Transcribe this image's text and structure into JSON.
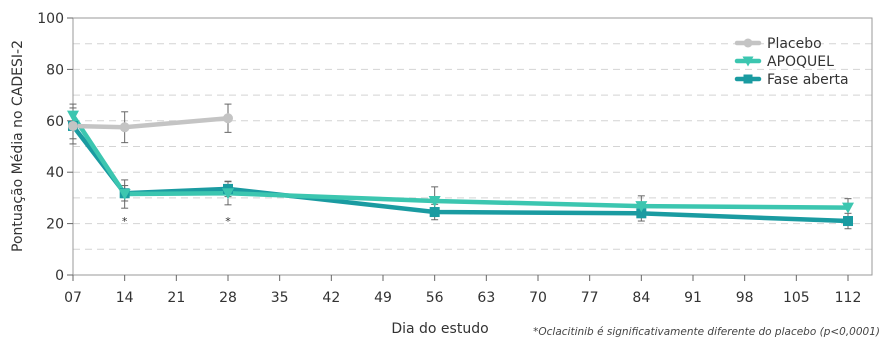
{
  "chart_data": {
    "type": "line",
    "xlabel": "Dia do estudo",
    "ylabel": "Pontuação Média no CADESI-2",
    "x_ticks": [
      "07",
      "14",
      "21",
      "28",
      "35",
      "42",
      "49",
      "56",
      "63",
      "70",
      "77",
      "84",
      "91",
      "98",
      "105",
      "112"
    ],
    "y_ticks": [
      "0",
      "20",
      "40",
      "60",
      "80",
      "100"
    ],
    "ylim": [
      0,
      100
    ],
    "xlim": [
      7,
      112
    ],
    "grid": "horizontal dashed",
    "legend_position": "top-right",
    "footnote": "*Oclacitinib é significativamente diferente do placebo (p<0,0001)",
    "significance_marker": "*",
    "significance_days": [
      14,
      28
    ],
    "series": [
      {
        "name": "Placebo",
        "color": "#c4c4c4",
        "marker": "circle",
        "x": [
          7,
          14,
          28
        ],
        "y": [
          58,
          57.5,
          61
        ],
        "err": [
          7,
          6,
          5.5
        ]
      },
      {
        "name": "APOQUEL",
        "color": "#3cc6b0",
        "marker": "triangle-down",
        "x": [
          7,
          14,
          28,
          56,
          84,
          112
        ],
        "y": [
          62,
          31.5,
          31.8,
          28.8,
          26.8,
          26.2
        ],
        "err": [
          4.5,
          5.5,
          4.5,
          5.5,
          4,
          3.5
        ]
      },
      {
        "name": "Fase aberta",
        "color": "#1a9ba1",
        "marker": "square",
        "x": [
          7,
          14,
          28,
          56,
          84,
          112
        ],
        "y": [
          58,
          31.8,
          33.5,
          24.5,
          24,
          21
        ],
        "err": [
          5,
          3,
          3,
          3,
          3,
          3
        ]
      }
    ]
  }
}
